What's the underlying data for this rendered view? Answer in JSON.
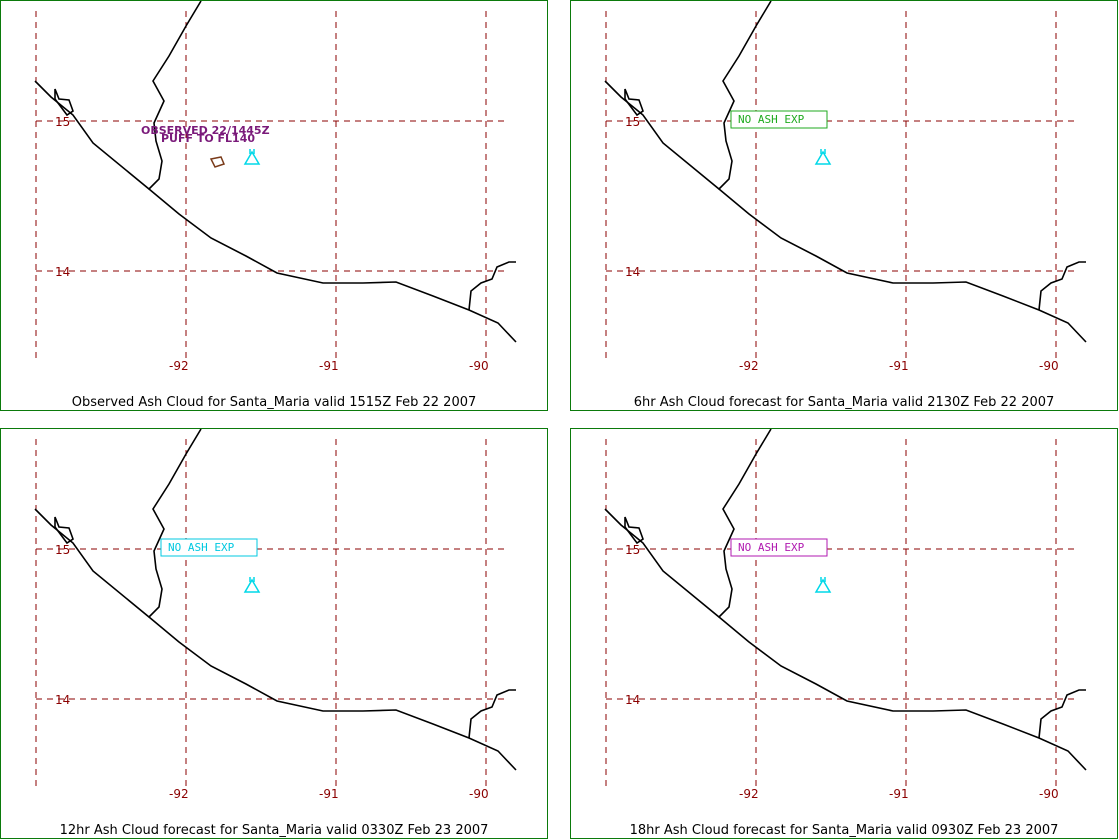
{
  "colors": {
    "frame": "#0b7a0b",
    "grid": "#8b0000",
    "coast": "#000000",
    "volcano": "#00d8e8",
    "observed_text": "#7a1a7a",
    "ash_outline": "#7a3b1a"
  },
  "panels": [
    {
      "caption": "Observed Ash Cloud for Santa_Maria valid 1515Z Feb 22 2007",
      "lat_labels": [
        "15",
        "14"
      ],
      "lon_labels": [
        "-92",
        "-91",
        "-90"
      ],
      "volcano_icon": "volcano-icon",
      "annotation": {
        "line1": "OBSERVED 22/1445Z",
        "line2": "PUFF TO FL140"
      },
      "box": null
    },
    {
      "caption": "6hr Ash Cloud forecast for Santa_Maria valid 2130Z Feb 22 2007",
      "lat_labels": [
        "15",
        "14"
      ],
      "lon_labels": [
        "-92",
        "-91",
        "-90"
      ],
      "volcano_icon": "volcano-icon",
      "annotation": null,
      "box": {
        "text": "NO ASH EXP",
        "color": "#1faa1f"
      }
    },
    {
      "caption": "12hr Ash Cloud forecast for Santa_Maria valid 0330Z Feb 23 2007",
      "lat_labels": [
        "15",
        "14"
      ],
      "lon_labels": [
        "-92",
        "-91",
        "-90"
      ],
      "volcano_icon": "volcano-icon",
      "annotation": null,
      "box": {
        "text": "NO ASH EXP",
        "color": "#00c8e0"
      }
    },
    {
      "caption": "18hr Ash Cloud forecast for Santa_Maria valid 0930Z Feb 23 2007",
      "lat_labels": [
        "15",
        "14"
      ],
      "lon_labels": [
        "-92",
        "-91",
        "-90"
      ],
      "volcano_icon": "volcano-icon",
      "annotation": null,
      "box": {
        "text": "NO ASH EXP",
        "color": "#b01ab0"
      }
    }
  ]
}
